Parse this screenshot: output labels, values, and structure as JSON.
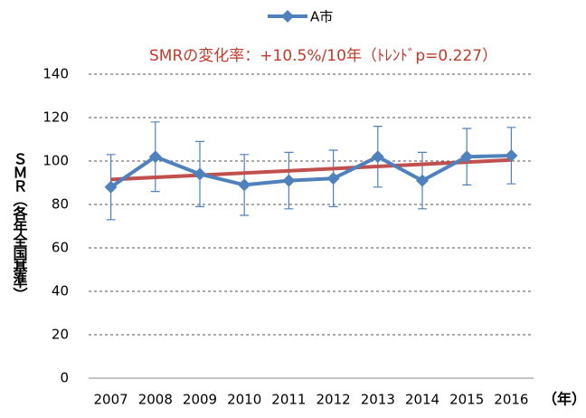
{
  "chart_data": {
    "type": "line",
    "categories": [
      "2007",
      "2008",
      "2009",
      "2010",
      "2011",
      "2012",
      "2013",
      "2014",
      "2015",
      "2016"
    ],
    "series": [
      {
        "name": "A市",
        "color": "#4f81bd",
        "values": [
          88,
          102,
          94,
          89,
          91,
          92,
          102,
          91,
          102,
          102.5
        ],
        "errors": [
          15,
          16,
          15,
          14,
          13,
          13,
          14,
          13,
          13,
          13
        ]
      }
    ],
    "trend": {
      "values": [
        91.5,
        100.5
      ],
      "color": "#c0504d"
    },
    "annotation": "SMRの変化率：+10.5%/10年（ﾄﾚﾝﾄﾞp=0.227）",
    "y_label": "ＳＭＲ（各年全国基準）",
    "x_label": "（年）",
    "ylim": [
      0,
      140
    ],
    "yticks": [
      0,
      20,
      40,
      60,
      80,
      100,
      120,
      140
    ],
    "grid": true
  }
}
